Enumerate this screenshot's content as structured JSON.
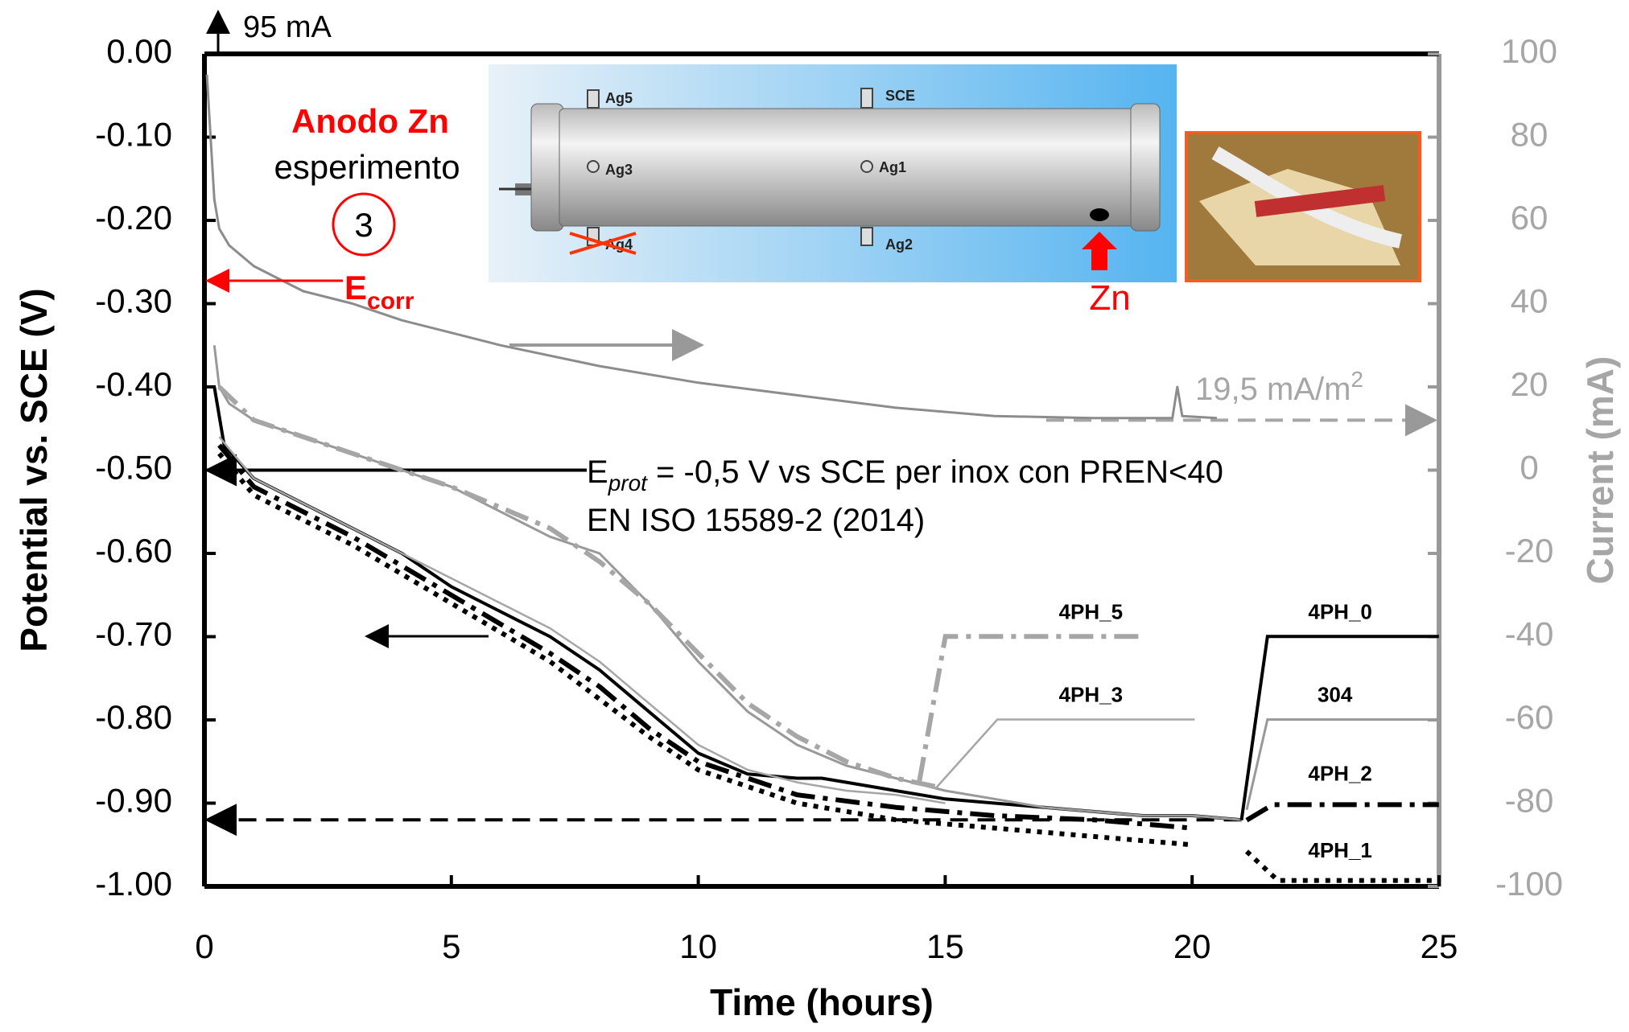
{
  "chart_data": {
    "type": "line",
    "y_label": "Potential vs. SCE (V)",
    "y2_label": "Current (mA)",
    "x_label": "Time (hours)",
    "xlim": [
      0,
      25
    ],
    "xticks": [
      0,
      5,
      10,
      15,
      20,
      25
    ],
    "ylim": [
      -1,
      0
    ],
    "yticks": [
      {
        "value": 0,
        "label": "0.00"
      },
      {
        "value": -0.1,
        "label": "-0.10"
      },
      {
        "value": -0.2,
        "label": "-0.20"
      },
      {
        "value": -0.3,
        "label": "-0.30"
      },
      {
        "value": -0.4,
        "label": "-0.40"
      },
      {
        "value": -0.5,
        "label": "-0.50"
      },
      {
        "value": -0.6,
        "label": "-0.60"
      },
      {
        "value": -0.7,
        "label": "-0.70"
      },
      {
        "value": -0.8,
        "label": "-0.80"
      },
      {
        "value": -0.9,
        "label": "-0.90"
      },
      {
        "value": -1,
        "label": "-1.00"
      }
    ],
    "y2lim": [
      -100,
      100
    ],
    "y2ticks": [
      -100,
      -80,
      -60,
      -40,
      -20,
      0,
      20,
      40,
      60,
      80,
      100
    ],
    "series": [
      {
        "axis": "y2",
        "color": "#8c8c8c",
        "dash": "solid",
        "width": 3,
        "x": [
          0.05,
          0.1,
          0.2,
          0.3,
          0.5,
          1,
          2,
          3,
          4,
          5,
          6,
          8,
          10,
          12,
          14,
          16,
          18,
          19.6,
          19.7,
          19.8,
          20.5
        ],
        "values": [
          95,
          85,
          65,
          58,
          54,
          49,
          43,
          40,
          36,
          33,
          30,
          25,
          21,
          18,
          15,
          13,
          12.5,
          12.5,
          20,
          13,
          12.5
        ]
      },
      {
        "name": "4PH_0",
        "color": "#000000",
        "dash": "solid",
        "width": 4,
        "x": [
          0.2,
          0.4,
          1,
          2,
          3,
          4,
          5,
          6,
          7,
          8,
          9,
          10,
          11,
          12,
          12.5,
          13,
          14,
          15,
          16,
          17,
          18,
          19,
          20,
          21
        ],
        "values": [
          -0.4,
          -0.47,
          -0.51,
          -0.54,
          -0.57,
          -0.6,
          -0.64,
          -0.67,
          -0.7,
          -0.74,
          -0.79,
          -0.84,
          -0.865,
          -0.87,
          -0.87,
          -0.875,
          -0.885,
          -0.895,
          -0.9,
          -0.905,
          -0.91,
          -0.915,
          -0.915,
          -0.92
        ]
      },
      {
        "name": "304",
        "color": "#999999",
        "dash": "solid",
        "width": 3,
        "x": [
          0.2,
          0.3,
          0.5,
          1,
          2,
          3,
          4,
          5,
          6,
          7,
          8,
          9,
          10,
          11,
          12,
          13,
          14,
          15,
          16,
          17,
          18,
          19,
          20,
          21
        ],
        "values": [
          -0.35,
          -0.4,
          -0.42,
          -0.44,
          -0.46,
          -0.48,
          -0.5,
          -0.52,
          -0.55,
          -0.58,
          -0.6,
          -0.66,
          -0.73,
          -0.79,
          -0.83,
          -0.855,
          -0.87,
          -0.885,
          -0.895,
          -0.905,
          -0.91,
          -0.915,
          -0.915,
          -0.92
        ]
      },
      {
        "name": "4PH_5",
        "color": "#a6a6a6",
        "dash": "dashdot",
        "width": 6,
        "x": [
          0.3,
          1,
          3,
          5,
          7,
          8,
          9,
          10,
          11,
          12,
          13,
          14,
          14.8
        ],
        "values": [
          -0.4,
          -0.44,
          -0.48,
          -0.52,
          -0.57,
          -0.61,
          -0.66,
          -0.72,
          -0.78,
          -0.82,
          -0.85,
          -0.87,
          -0.88
        ]
      },
      {
        "name": "4PH_3",
        "color": "#a6a6a6",
        "dash": "solid",
        "width": 2.5,
        "x": [
          0.3,
          1,
          2,
          3,
          4,
          5,
          6,
          7,
          8,
          9,
          10,
          11,
          12,
          13,
          14,
          15
        ],
        "values": [
          -0.46,
          -0.51,
          -0.54,
          -0.57,
          -0.6,
          -0.63,
          -0.66,
          -0.69,
          -0.73,
          -0.78,
          -0.83,
          -0.86,
          -0.875,
          -0.885,
          -0.89,
          -0.9
        ]
      },
      {
        "name": "4PH_2",
        "color": "#000000",
        "dash": "dashdot",
        "width": 6,
        "x": [
          0.3,
          1,
          3,
          5,
          7,
          8,
          9,
          10,
          11,
          12,
          14,
          16,
          18,
          20
        ],
        "values": [
          -0.47,
          -0.52,
          -0.58,
          -0.65,
          -0.72,
          -0.76,
          -0.81,
          -0.85,
          -0.87,
          -0.89,
          -0.905,
          -0.915,
          -0.92,
          -0.93
        ]
      },
      {
        "name": "4PH_1",
        "color": "#000000",
        "dash": "dotted",
        "width": 6,
        "x": [
          0.3,
          1,
          3,
          5,
          7,
          9,
          10,
          12,
          14,
          16,
          18,
          20
        ],
        "values": [
          -0.48,
          -0.53,
          -0.59,
          -0.66,
          -0.73,
          -0.82,
          -0.86,
          -0.9,
          -0.92,
          -0.93,
          -0.94,
          -0.95
        ]
      }
    ],
    "reference_lines": [
      {
        "axis": "y",
        "value": -0.5
      },
      {
        "axis": "y",
        "value": -0.92
      },
      {
        "axis": "y2",
        "value": 12
      }
    ],
    "annotations": {
      "start_current": "95 mA",
      "anode": "Anodo Zn",
      "experiment": "esperimento",
      "experiment_number": "3",
      "ecorr_main": "E",
      "ecorr_sub": "corr",
      "eprot_main": "E",
      "eprot_sub": "prot",
      "eprot_text": " = -0,5 V vs SCE per inox con PREN<40",
      "standard": "EN ISO 15589-2 (2014)",
      "density": "19,5 mA/m",
      "density_sup": "2"
    },
    "inset_labels": {
      "ag5": "Ag5",
      "sce": "SCE",
      "ag3": "Ag3",
      "ag1": "Ag1",
      "ag4": "Ag4",
      "ag2": "Ag2",
      "zn": "Zn"
    }
  }
}
